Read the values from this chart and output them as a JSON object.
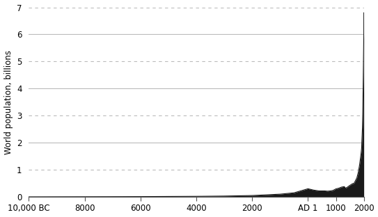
{
  "ylabel": "World population, billions",
  "xlim_start": -10000,
  "xlim_end": 2000,
  "ylim_start": 0,
  "ylim_end": 7,
  "yticks": [
    0,
    1,
    2,
    3,
    4,
    5,
    6,
    7
  ],
  "xtick_positions": [
    -10000,
    -8000,
    -6000,
    -4000,
    -2000,
    0,
    1000,
    2000
  ],
  "xtick_labels": [
    "10,000 BC",
    "8000",
    "6000",
    "4000",
    "2000",
    "AD 1",
    "1000",
    "2000"
  ],
  "fill_color": "#1a1a1a",
  "line_color": "#1a1a1a",
  "background_color": "#ffffff",
  "grid_solid_color": "#bbbbbb",
  "grid_dashed_color": "#bbbbbb",
  "population_data": [
    [
      -10000,
      0.001
    ],
    [
      -9000,
      0.003
    ],
    [
      -8000,
      0.005
    ],
    [
      -7000,
      0.007
    ],
    [
      -6000,
      0.01
    ],
    [
      -5000,
      0.015
    ],
    [
      -4000,
      0.02
    ],
    [
      -3000,
      0.03
    ],
    [
      -2000,
      0.05
    ],
    [
      -1000,
      0.1
    ],
    [
      -500,
      0.15
    ],
    [
      0,
      0.3
    ],
    [
      200,
      0.25
    ],
    [
      400,
      0.22
    ],
    [
      600,
      0.22
    ],
    [
      700,
      0.21
    ],
    [
      800,
      0.22
    ],
    [
      900,
      0.24
    ],
    [
      1000,
      0.295
    ],
    [
      1100,
      0.32
    ],
    [
      1200,
      0.36
    ],
    [
      1300,
      0.38
    ],
    [
      1340,
      0.32
    ],
    [
      1400,
      0.35
    ],
    [
      1500,
      0.425
    ],
    [
      1600,
      0.49
    ],
    [
      1650,
      0.5
    ],
    [
      1700,
      0.6
    ],
    [
      1750,
      0.7
    ],
    [
      1800,
      0.9
    ],
    [
      1850,
      1.2
    ],
    [
      1900,
      1.6
    ],
    [
      1920,
      1.8
    ],
    [
      1930,
      2.07
    ],
    [
      1940,
      2.3
    ],
    [
      1950,
      2.55
    ],
    [
      1960,
      3.02
    ],
    [
      1970,
      3.7
    ],
    [
      1980,
      4.45
    ],
    [
      1990,
      5.3
    ],
    [
      1999,
      6.0
    ],
    [
      2000,
      6.8
    ]
  ]
}
